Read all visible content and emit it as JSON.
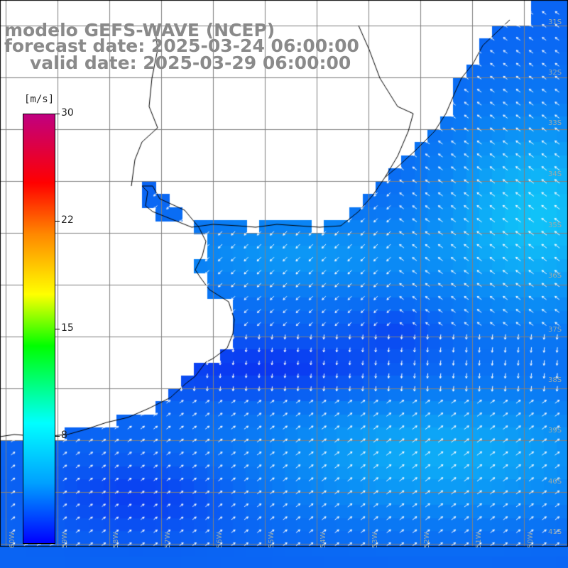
{
  "header": {
    "model_line": "modelo GEFS-WAVE (NCEP)",
    "forecast_line": "forecast date: 2025-03-24 06:00:00",
    "valid_line": "valid date: 2025-03-29 06:00:00"
  },
  "colorbar": {
    "unit": "[m/s]",
    "ticks": [
      "30",
      "22",
      "15",
      "8"
    ],
    "tick_values": [
      30,
      22,
      15,
      8
    ],
    "min": 0,
    "max": 30
  },
  "grid_labels": {
    "lat": [
      "31S",
      "32S",
      "33S",
      "34S",
      "35S",
      "36S",
      "37S",
      "38S",
      "39S",
      "40S",
      "41S"
    ],
    "lon": [
      "60W",
      "59W",
      "58W",
      "57W",
      "56W",
      "55W",
      "54W",
      "53W",
      "52W",
      "51W",
      "50W"
    ]
  },
  "colors": {
    "land": "#ffffff",
    "grid": "#808080",
    "coast": "#000000",
    "arrow": "#ffffff",
    "title": "#8a8a8a",
    "sea_low": "#0a2cf0",
    "sea_mid": "#0a78f5",
    "sea_high": "#14e6f8"
  }
}
